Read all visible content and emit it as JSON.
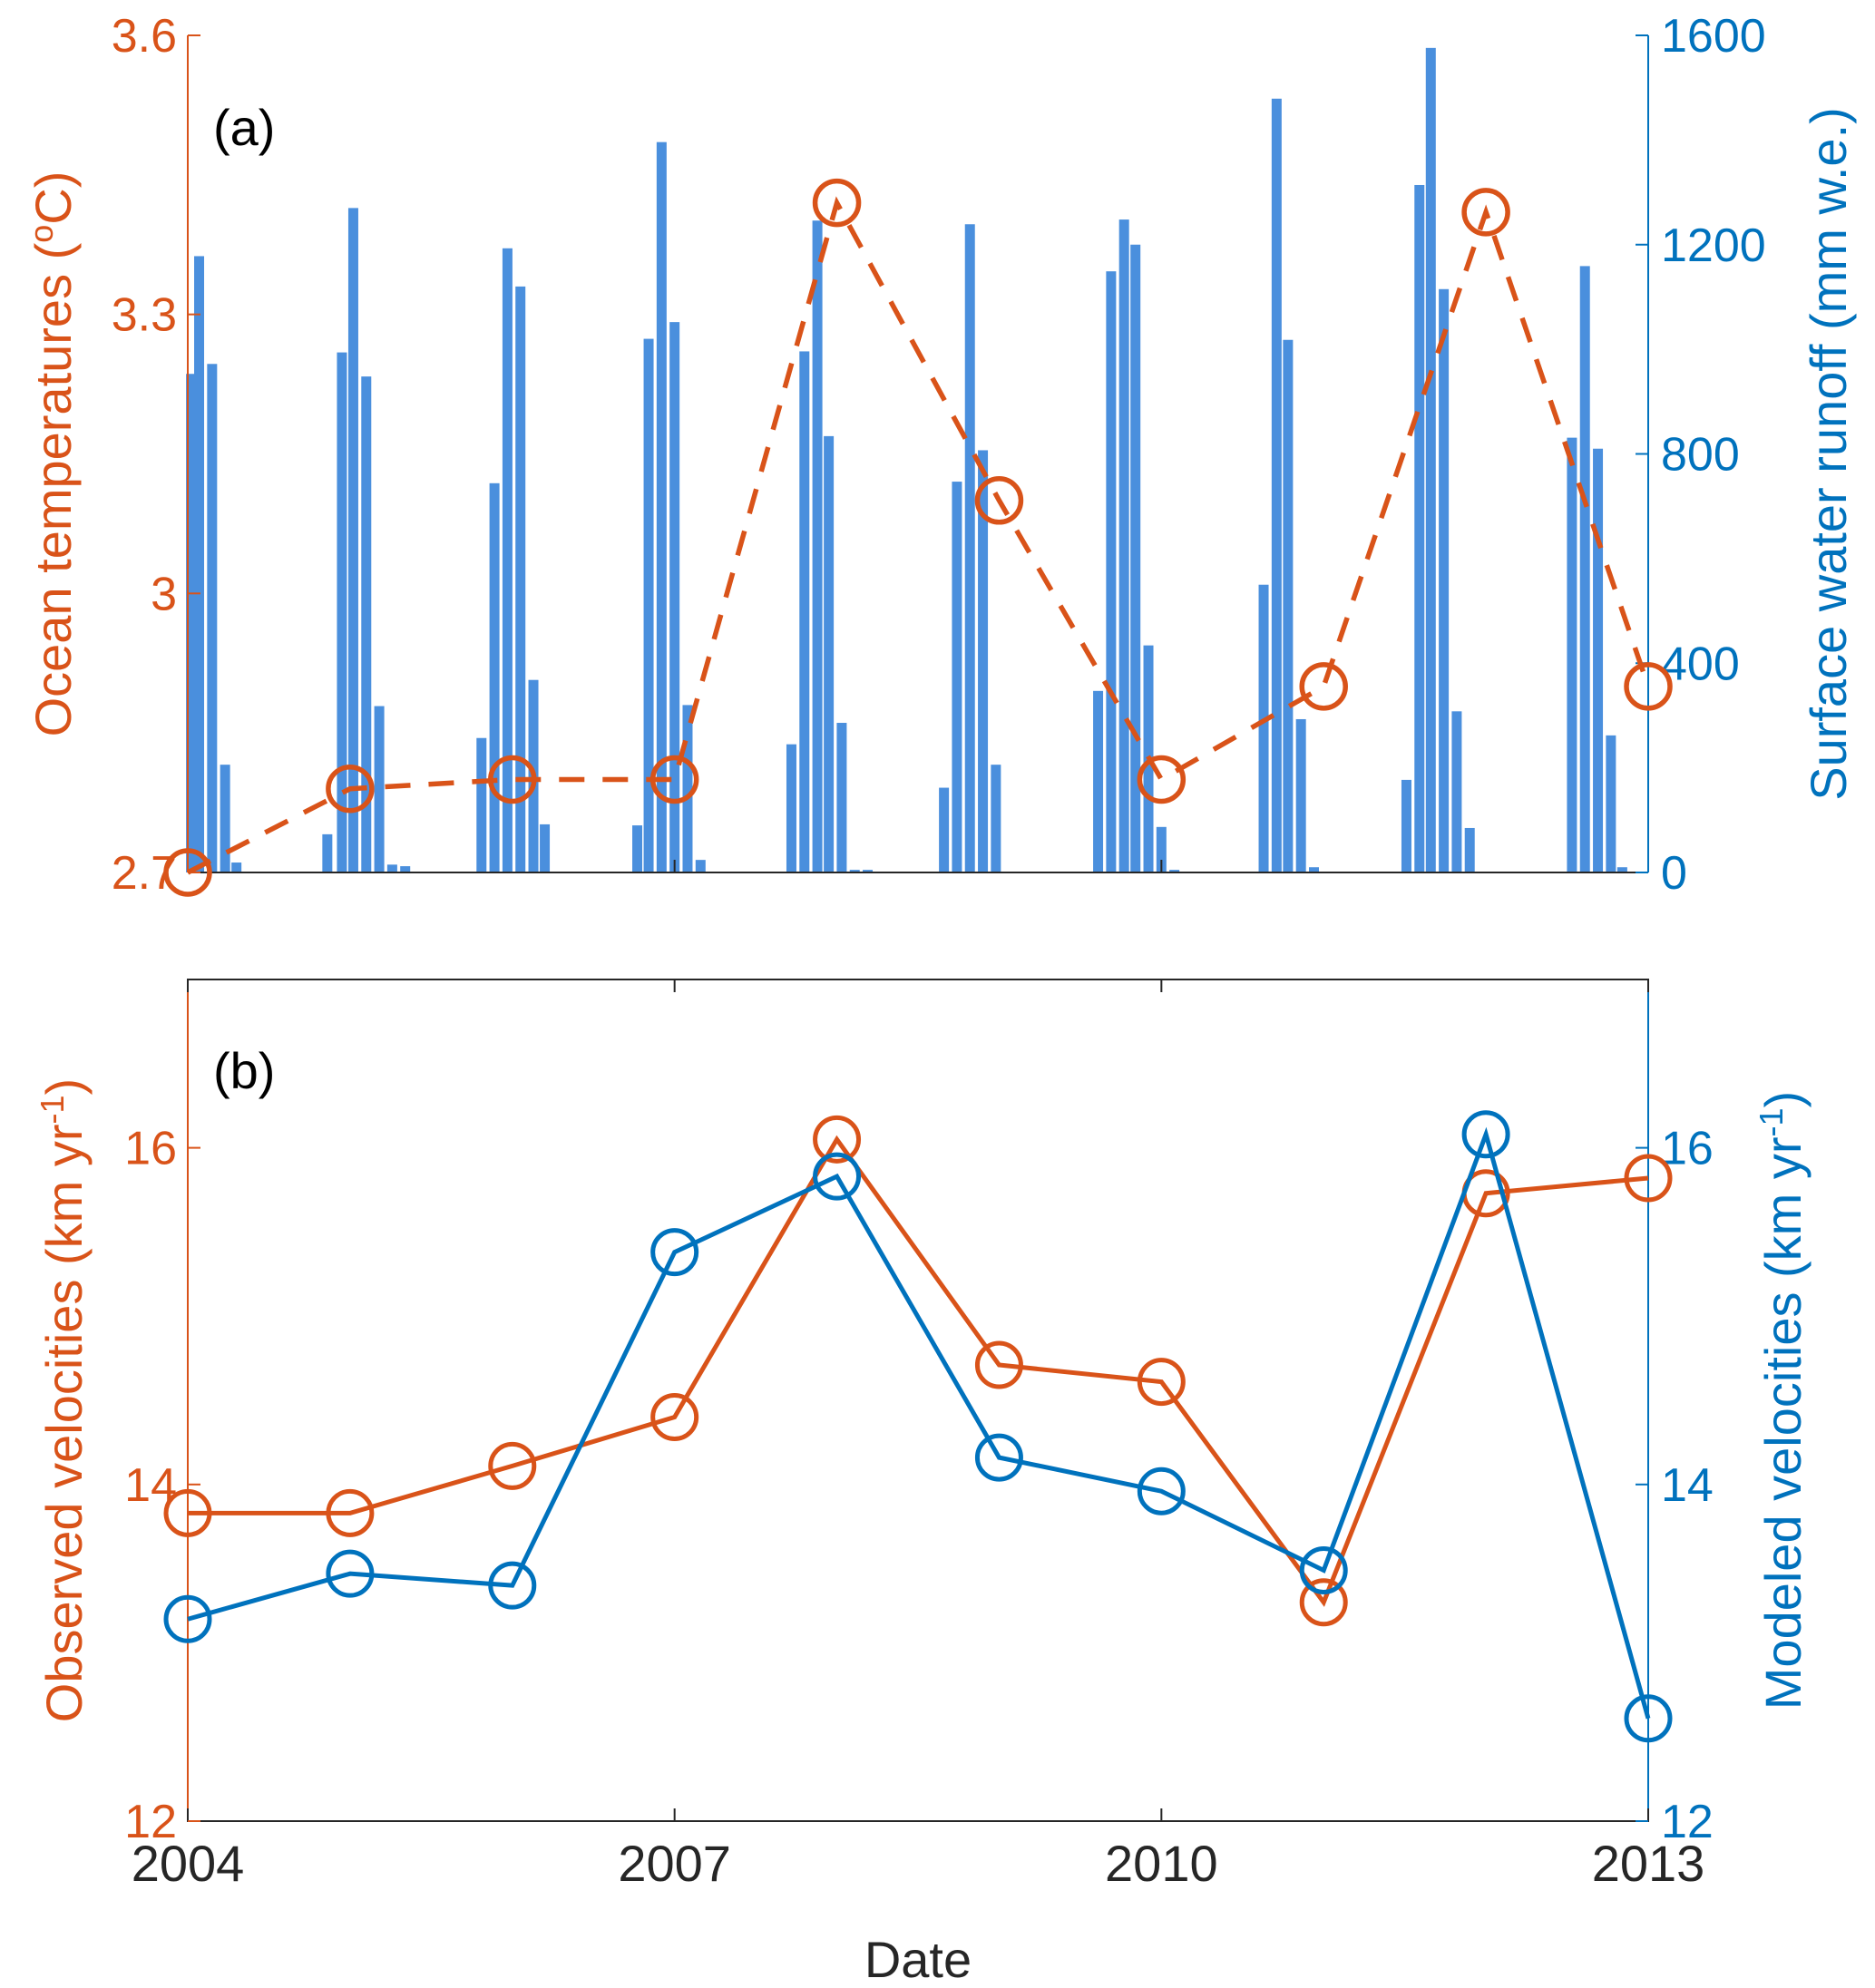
{
  "colors": {
    "orange": "#D95319",
    "blue": "#0072BD",
    "bar": "#4A8FDD",
    "axis": "#262626"
  },
  "chart_data": [
    {
      "panel_label": "(a)",
      "type": "bar+line",
      "x_range": [
        2004,
        2013
      ],
      "y_left": {
        "label_parts": [
          "Ocean temperatures (",
          "o",
          "C)"
        ],
        "range": [
          2.7,
          3.6
        ],
        "ticks": [
          "2.7",
          "3",
          "3.3",
          "3.6"
        ],
        "color": "#D95319"
      },
      "y_right": {
        "label_parts": [
          "Surface water runoff (mm w.e.)"
        ],
        "range": [
          0,
          1600
        ],
        "ticks": [
          "0",
          "400",
          "800",
          "1200",
          "1600"
        ],
        "color": "#0072BD"
      },
      "temperature": {
        "style": "dashed line with circle markers",
        "x": [
          2004,
          2005,
          2006,
          2007,
          2008,
          2009,
          2010,
          2011,
          2012,
          2013
        ],
        "y": [
          2.7,
          2.79,
          2.8,
          2.8,
          3.42,
          3.1,
          2.8,
          2.9,
          3.41,
          2.9
        ]
      },
      "runoff_bars": {
        "x": [
          2004.02,
          2004.07,
          2004.15,
          2004.23,
          2004.3,
          2004.86,
          2004.95,
          2005.02,
          2005.1,
          2005.18,
          2005.26,
          2005.34,
          2005.81,
          2005.89,
          2005.97,
          2006.05,
          2006.13,
          2006.2,
          2006.77,
          2006.84,
          2006.92,
          2007.0,
          2007.08,
          2007.16,
          2007.72,
          2007.8,
          2007.88,
          2007.95,
          2008.03,
          2008.11,
          2008.19,
          2008.66,
          2008.74,
          2008.82,
          2008.9,
          2008.98,
          2009.61,
          2009.69,
          2009.77,
          2009.84,
          2009.92,
          2010.0,
          2010.08,
          2010.63,
          2010.71,
          2010.78,
          2010.86,
          2010.94,
          2011.51,
          2011.59,
          2011.66,
          2011.74,
          2011.82,
          2011.9,
          2012.53,
          2012.61,
          2012.69,
          2012.77,
          2012.84
        ],
        "values": [
          953,
          1178,
          972,
          206,
          19,
          73,
          994,
          1270,
          948,
          318,
          15,
          12,
          257,
          744,
          1193,
          1120,
          368,
          92,
          90,
          1020,
          1396,
          1052,
          320,
          24,
          245,
          996,
          1246,
          834,
          286,
          5,
          5,
          162,
          747,
          1239,
          807,
          206,
          347,
          1149,
          1248,
          1200,
          434,
          87,
          5,
          550,
          1479,
          1018,
          293,
          10,
          177,
          1314,
          1576,
          1115,
          308,
          85,
          831,
          1159,
          810,
          262,
          10
        ]
      }
    },
    {
      "panel_label": "(b)",
      "type": "line",
      "xlabel": "Date",
      "x_ticks": [
        "2004",
        "2007",
        "2010",
        "2013"
      ],
      "x_range": [
        2004,
        2013
      ],
      "y_left": {
        "label_parts": [
          "Observed velocities (km yr",
          "-1",
          ")"
        ],
        "range": [
          12,
          17
        ],
        "ticks": [
          "12",
          "14",
          "16"
        ],
        "color": "#D95319"
      },
      "y_right": {
        "label_parts": [
          "Modeled velocities (km yr",
          "-1",
          ")"
        ],
        "range": [
          12,
          17
        ],
        "ticks": [
          "12",
          "14",
          "16"
        ],
        "color": "#0072BD"
      },
      "series": [
        {
          "axis": "left",
          "color": "#D95319",
          "x": [
            2004,
            2005,
            2006,
            2007,
            2008,
            2009,
            2010,
            2011,
            2012,
            2013
          ],
          "y": [
            13.83,
            13.83,
            14.11,
            14.4,
            16.05,
            14.71,
            14.61,
            13.3,
            15.73,
            15.82
          ]
        },
        {
          "axis": "right",
          "color": "#0072BD",
          "x": [
            2004,
            2005,
            2006,
            2007,
            2008,
            2009,
            2010,
            2011,
            2012,
            2013
          ],
          "y": [
            13.2,
            13.47,
            13.4,
            15.38,
            15.83,
            14.16,
            13.96,
            13.49,
            16.08,
            12.61
          ]
        }
      ]
    }
  ]
}
